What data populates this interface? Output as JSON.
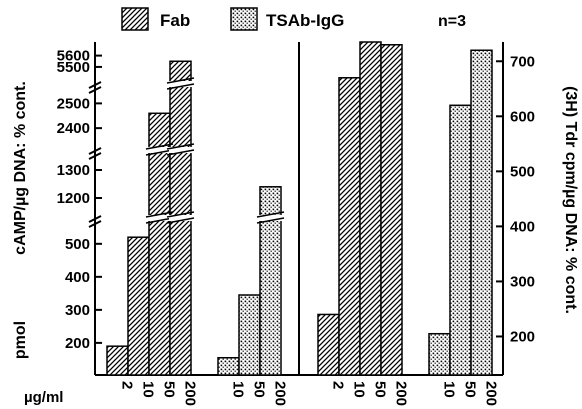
{
  "legend": {
    "fab": "Fab",
    "tsab": "TSAb-IgG",
    "n": "n=3"
  },
  "chart_data": [
    {
      "type": "bar",
      "panel": "left",
      "ylabel_parts": [
        "pmol",
        "cAMP/µg DNA: % cont."
      ],
      "y_segments": [
        {
          "range": [
            130,
            560
          ],
          "ticks": [
            200,
            300,
            400,
            500
          ]
        },
        {
          "range": [
            1150,
            1350
          ],
          "ticks": [
            1200,
            1300
          ]
        },
        {
          "range": [
            2340,
            2550
          ],
          "ticks": [
            2400,
            2500
          ]
        },
        {
          "range": [
            5420,
            5720
          ],
          "ticks": [
            5500,
            5600
          ]
        }
      ],
      "series": [
        {
          "name": "Fab",
          "x": [
            "2",
            "10",
            "50",
            "200"
          ],
          "values": [
            190,
            520,
            2460,
            5550
          ]
        },
        {
          "name": "TSAb-IgG",
          "x": [
            "10",
            "50",
            "200"
          ],
          "values": [
            155,
            345,
            1240
          ]
        }
      ]
    },
    {
      "type": "bar",
      "panel": "right",
      "ylabel": "(3H) Tdr cpm/µg DNA: % cont.",
      "ylim": [
        130,
        735
      ],
      "yticks": [
        200,
        300,
        400,
        500,
        600,
        700
      ],
      "series": [
        {
          "name": "Fab",
          "x": [
            "2",
            "10",
            "50",
            "200"
          ],
          "values": [
            240,
            670,
            735,
            730
          ]
        },
        {
          "name": "TSAb-IgG",
          "x": [
            "10",
            "50",
            "200"
          ],
          "values": [
            205,
            620,
            720
          ]
        }
      ]
    }
  ],
  "xaxis_unit": "µg/ml"
}
